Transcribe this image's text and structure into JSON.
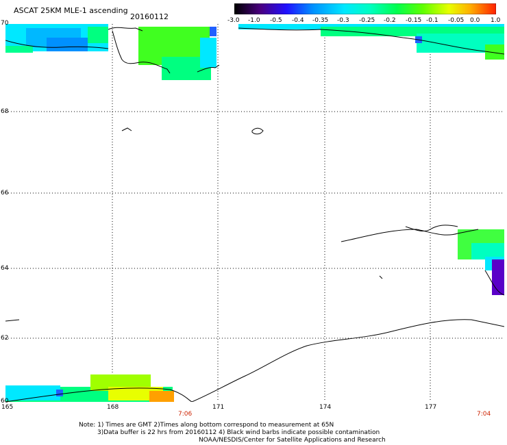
{
  "header": {
    "title": "ASCAT 25KM MLE-1 ascending",
    "date": "20160112"
  },
  "colorbar": {
    "labels": [
      "-3.0",
      "-1.0",
      "-0.5",
      "-0.4",
      "-0.35",
      "-0.3",
      "-0.25",
      "-0.2",
      "-0.15",
      "-0.1",
      "-0.05",
      "0.0",
      "1.0"
    ],
    "colors": [
      "#000000",
      "#5a00a8",
      "#2000ff",
      "#0080ff",
      "#00c8ff",
      "#00ffe0",
      "#00ff80",
      "#40ff00",
      "#a0ff00",
      "#ffff00",
      "#ffa000",
      "#ff4000",
      "#ff0000"
    ]
  },
  "map": {
    "lat_labels": [
      "70",
      "68",
      "66",
      "64",
      "62",
      "60"
    ],
    "lon_labels": [
      "165",
      "168",
      "171",
      "174",
      "177"
    ],
    "time_labels": [
      "7:06",
      "7:04"
    ],
    "grid_color": "#000000",
    "coast_color": "#000000"
  },
  "notes": {
    "line1": "Note: 1) Times are GMT 2)Times along bottom correspond to measurement at 65N",
    "line2": "3)Data buffer is 22 hrs from 20160112 4) Black wind barbs indicate possible contamination",
    "line3": "NOAA/NESDIS/Center for Satellite Applications and Research"
  }
}
